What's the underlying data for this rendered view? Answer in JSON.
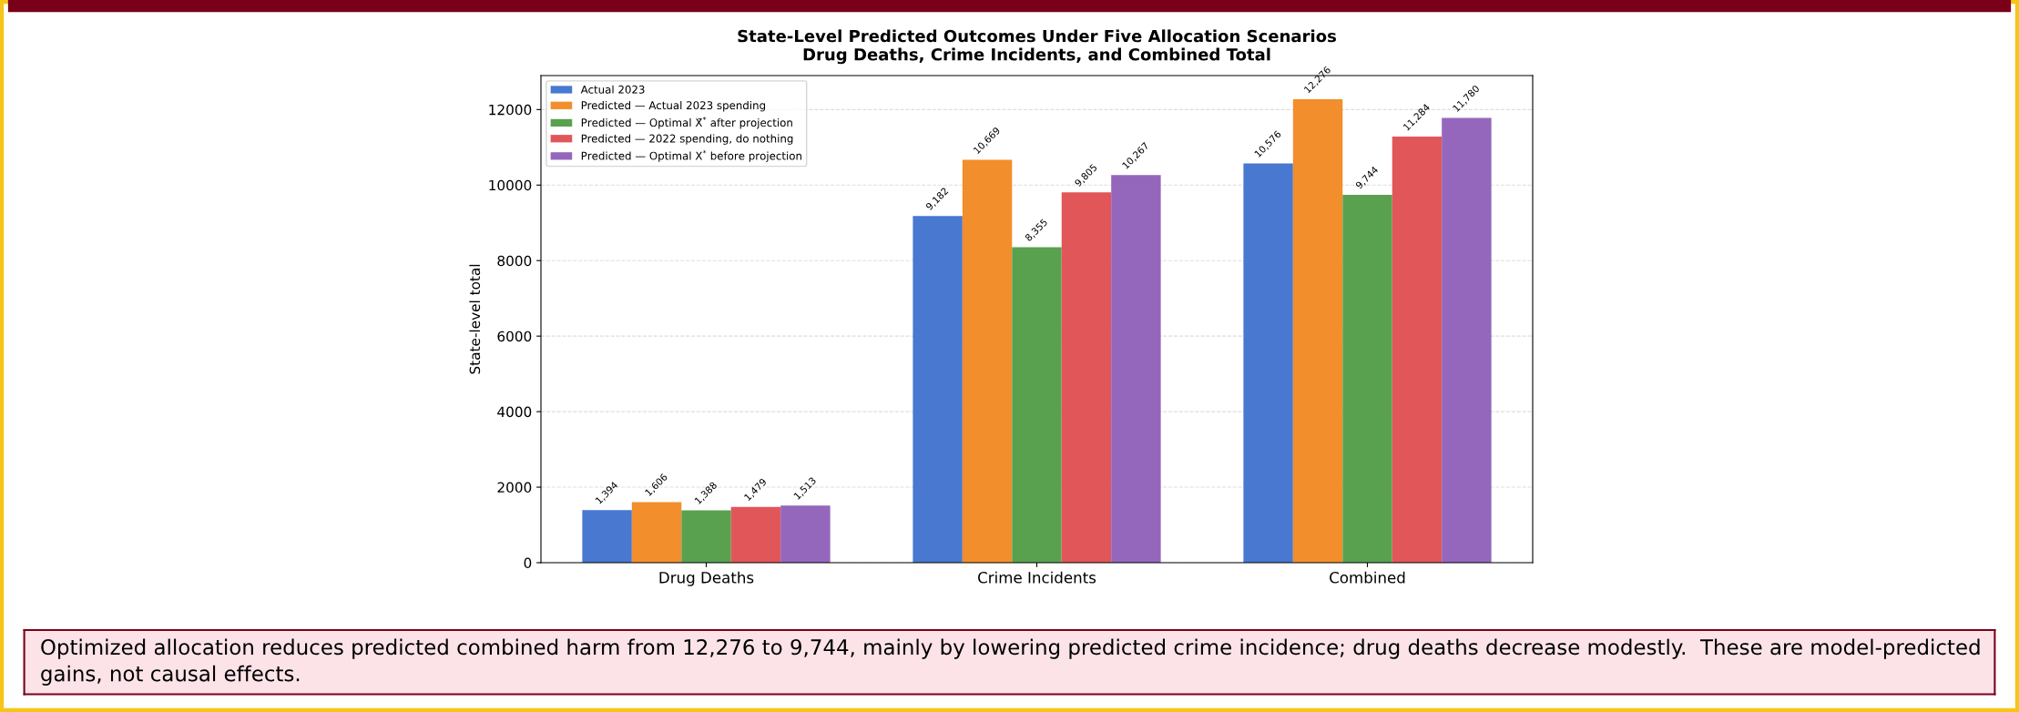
{
  "chart_data": {
    "type": "bar",
    "title": "State-Level Predicted Outcomes Under Five Allocation Scenarios\nDrug Deaths, Crime Incidents, and Combined Total",
    "ylabel": "State-level total",
    "categories": [
      "Drug Deaths",
      "Crime Incidents",
      "Combined"
    ],
    "series": [
      {
        "name": "Actual 2023",
        "color": "#4878d0",
        "values": [
          1394,
          9182,
          10576
        ],
        "value_labels": [
          "1,394",
          "9,182",
          "10,576"
        ]
      },
      {
        "name": "Predicted — Actual 2023 spending",
        "color": "#f28e2b",
        "values": [
          1606,
          10669,
          12276
        ],
        "value_labels": [
          "1,606",
          "10,669",
          "12,276"
        ]
      },
      {
        "name": "Predicted — Optimal X̃$^{*}$ after projection",
        "color": "#59a14f",
        "values": [
          1388,
          8355,
          9744
        ],
        "value_labels": [
          "1,388",
          "8,355",
          "9,744"
        ]
      },
      {
        "name": "Predicted — 2022 spending, do nothing",
        "color": "#e15759",
        "values": [
          1479,
          9805,
          11284
        ],
        "value_labels": [
          "1,479",
          "9,805",
          "11,284"
        ]
      },
      {
        "name": "Predicted — Optimal X$^{*}$ before projection",
        "color": "#9467bd",
        "values": [
          1513,
          10267,
          11780
        ],
        "value_labels": [
          "1,513",
          "10,267",
          "11,780"
        ]
      }
    ],
    "ylim": [
      0,
      12900
    ],
    "yticks": [
      0,
      2000,
      4000,
      6000,
      8000,
      10000,
      12000
    ],
    "grid": "y",
    "legend": "top left",
    "annotations": [
      "Optimized allocation reduces predicted combined harm from 12,276 to 9,744, mainly by lowering predicted crime incidence; drug deaths decrease modestly.  These are model-predicted gains, not causal effects."
    ]
  }
}
